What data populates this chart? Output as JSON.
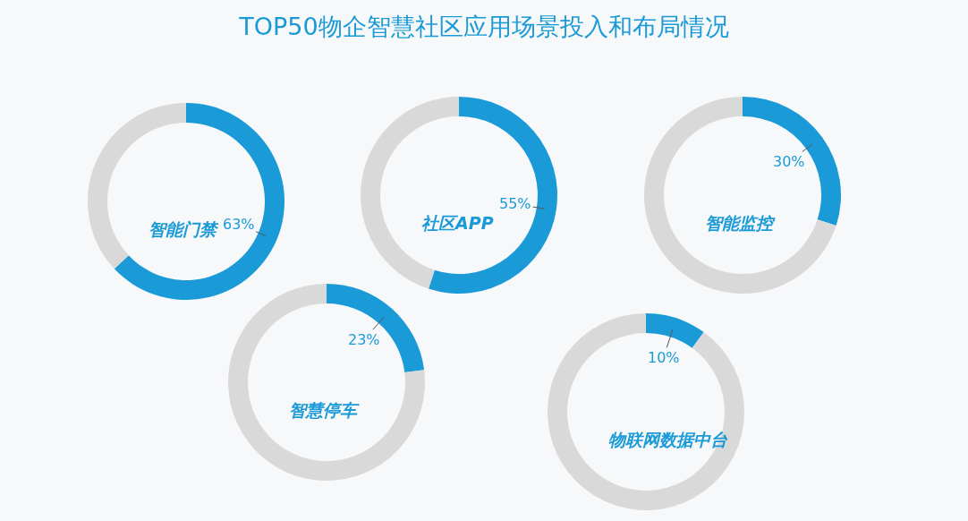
{
  "chart_data": [
    {
      "type": "donut",
      "title": "TOP50物企智慧社区应用场景投入和布局情况",
      "subtitle": "智能门禁",
      "categories": [
        null,
        null
      ],
      "values": [
        63,
        37
      ],
      "colors": [
        "#1b9ad8",
        "#d9d9d9"
      ],
      "value_labels": [
        "63%",
        null
      ]
    },
    {
      "type": "donut",
      "subtitle": "社区APP",
      "categories": [
        null,
        null
      ],
      "values": [
        55,
        45
      ],
      "colors": [
        "#1b9ad8",
        "#d9d9d9"
      ],
      "value_labels": [
        "55%",
        null
      ]
    },
    {
      "type": "donut",
      "subtitle": "智能监控",
      "categories": [
        null,
        null
      ],
      "values": [
        30,
        70
      ],
      "colors": [
        "#1b9ad8",
        "#d9d9d9"
      ],
      "value_labels": [
        "30%",
        null
      ]
    },
    {
      "type": "donut",
      "subtitle": "智慧停车",
      "categories": [
        null,
        null
      ],
      "values": [
        23,
        77
      ],
      "colors": [
        "#1b9ad8",
        "#d9d9d9"
      ],
      "value_labels": [
        "23%",
        null
      ]
    },
    {
      "type": "donut",
      "subtitle": "物联网数据中台",
      "categories": [
        null,
        null
      ],
      "values": [
        10,
        90
      ],
      "colors": [
        "#1b9ad8",
        "#d9d9d9"
      ],
      "value_labels": [
        "10%",
        null
      ]
    }
  ]
}
